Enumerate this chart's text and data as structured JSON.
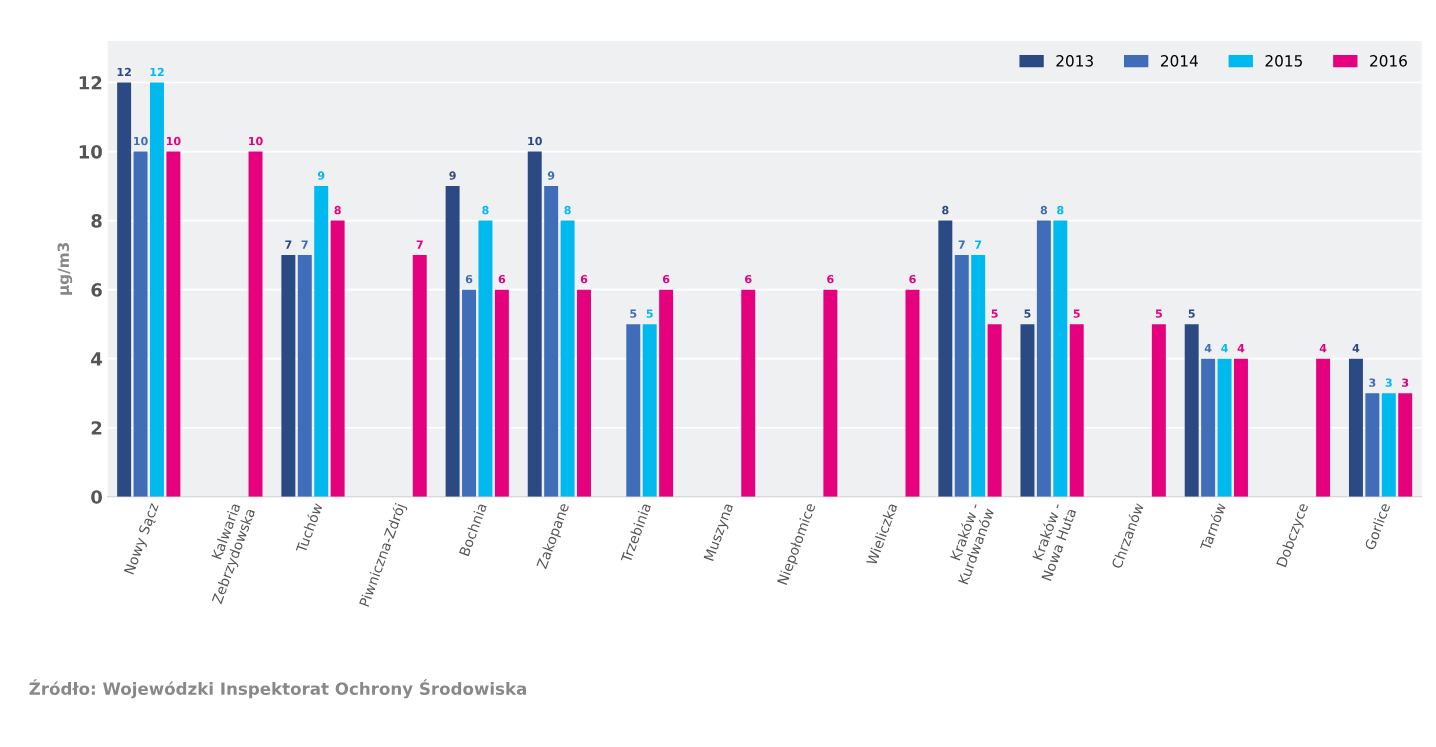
{
  "chart_data": {
    "type": "bar",
    "categories": [
      "Nowy Sącz",
      "Kalwaria\nZebrzydowska",
      "Tuchów",
      "Piwniczna-Zdrój",
      "Bochnia",
      "Zakopane",
      "Trzebinia",
      "Muszyna",
      "Niepołomice",
      "Wieliczka",
      "Kraków -\nKurdwanów",
      "Kraków -\nNowa Huta",
      "Chrzanów",
      "Tarnów",
      "Dobczyce",
      "Gorlice"
    ],
    "series": [
      {
        "name": "2013",
        "color": "#2b4a84",
        "values": [
          12,
          null,
          7,
          null,
          9,
          10,
          null,
          null,
          null,
          null,
          8,
          5,
          null,
          5,
          null,
          4
        ]
      },
      {
        "name": "2014",
        "color": "#3f6db8",
        "values": [
          10,
          null,
          7,
          null,
          6,
          9,
          5,
          null,
          null,
          null,
          7,
          8,
          null,
          4,
          null,
          3
        ]
      },
      {
        "name": "2015",
        "color": "#00b9ef",
        "values": [
          12,
          null,
          9,
          null,
          8,
          8,
          5,
          null,
          null,
          null,
          7,
          8,
          null,
          4,
          null,
          3
        ]
      },
      {
        "name": "2016",
        "color": "#e5007e",
        "values": [
          10,
          10,
          8,
          7,
          6,
          6,
          6,
          6,
          6,
          6,
          5,
          5,
          5,
          4,
          4,
          3
        ]
      }
    ],
    "ylabel": "µg/m3",
    "ylim": [
      0,
      13.2
    ],
    "yticks": [
      0,
      2,
      4,
      6,
      8,
      10,
      12
    ],
    "grid": "y",
    "legend": "top right",
    "data_labels": true,
    "annotations": [
      "Źródło: Wojewódzki Inspektorat Ochrony Środowiska"
    ]
  }
}
